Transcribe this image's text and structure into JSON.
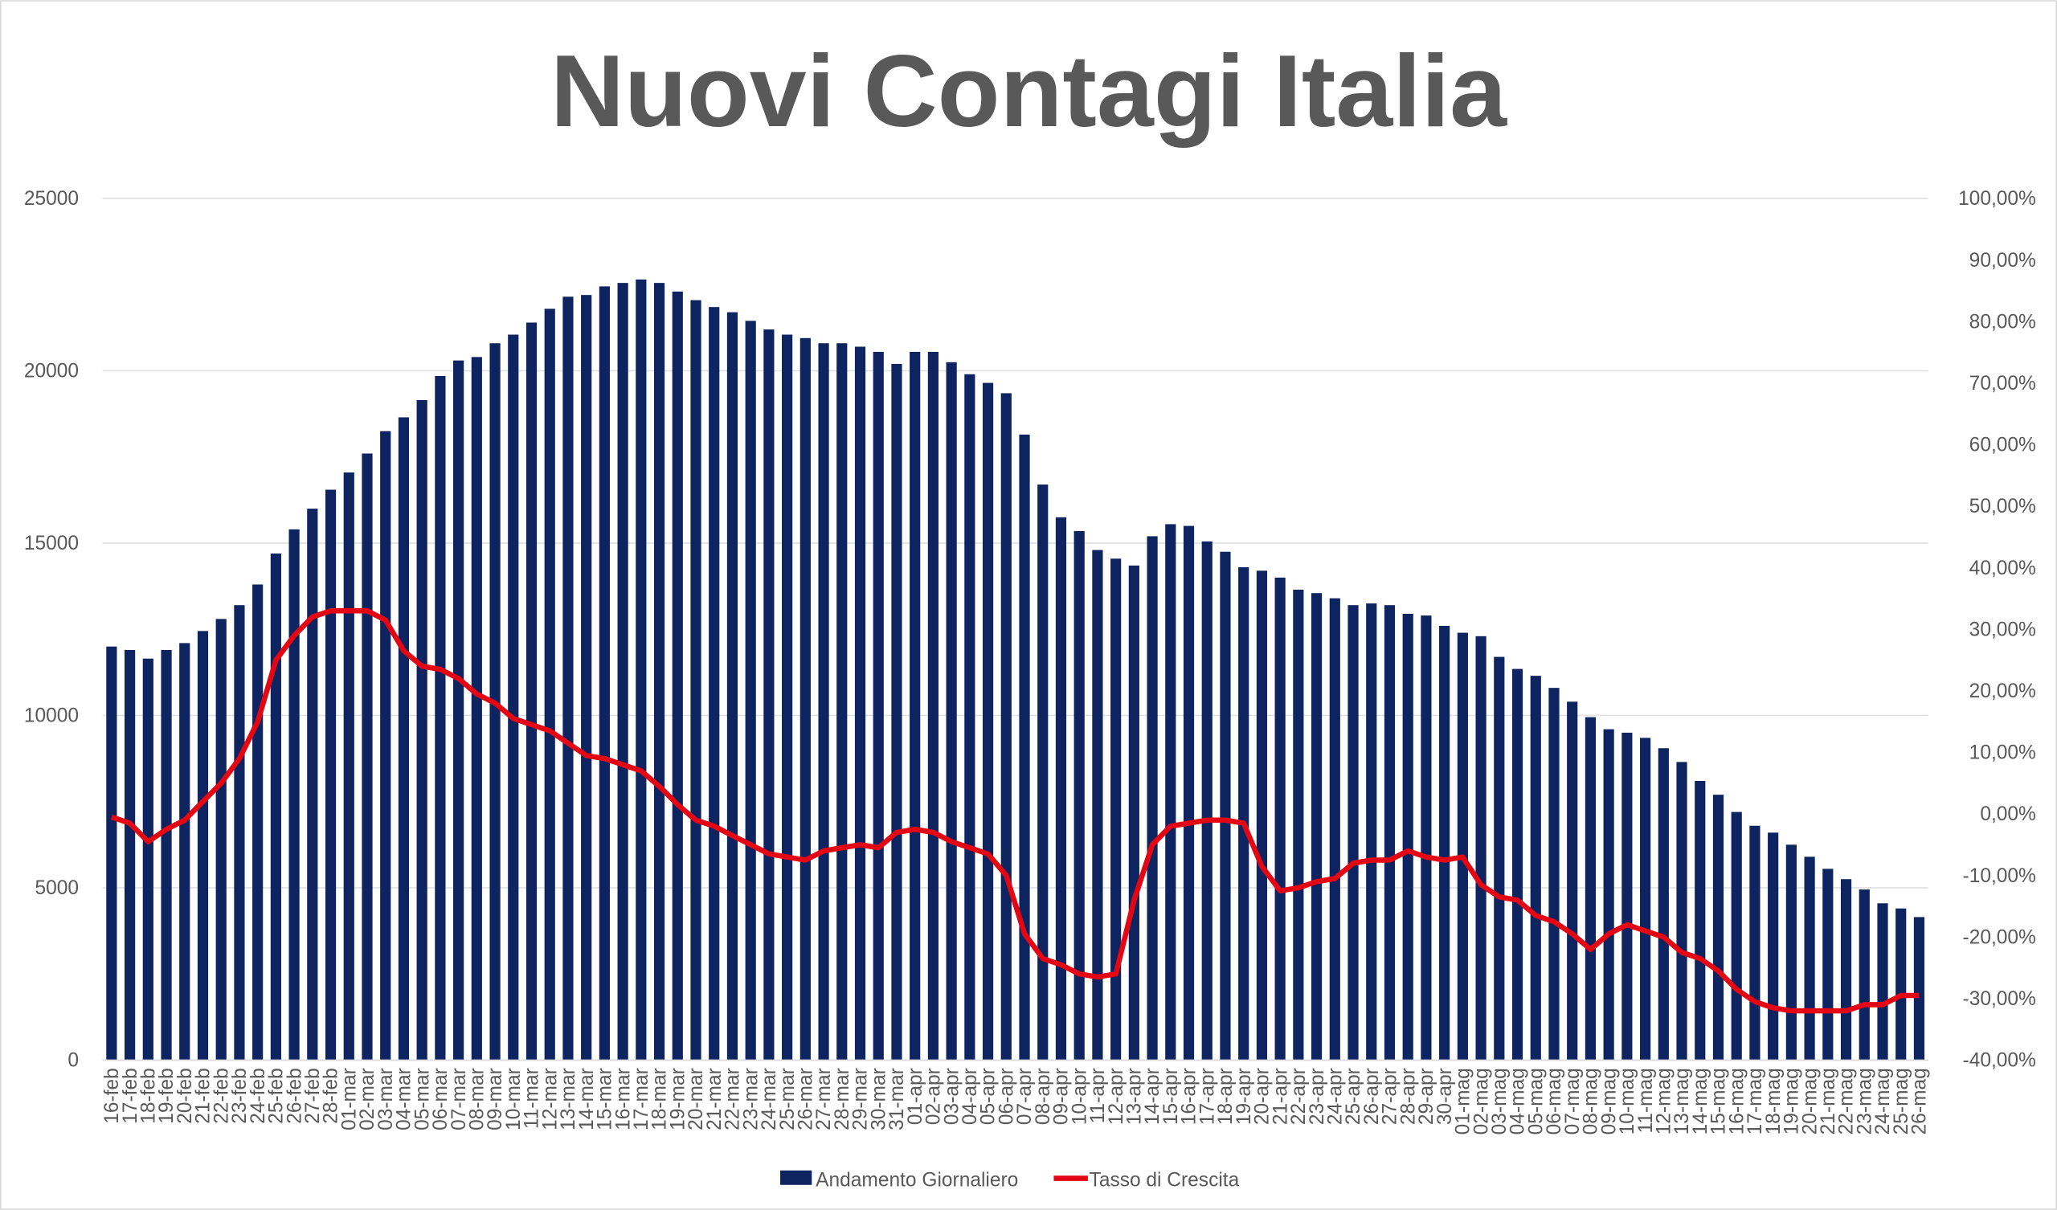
{
  "chart_data": {
    "type": "bar_line",
    "title": "Nuovi Contagi Italia",
    "categories": [
      "16-feb",
      "17-feb",
      "18-feb",
      "19-feb",
      "20-feb",
      "21-feb",
      "22-feb",
      "23-feb",
      "24-feb",
      "25-feb",
      "26-feb",
      "27-feb",
      "28-feb",
      "01-mar",
      "02-mar",
      "03-mar",
      "04-mar",
      "05-mar",
      "06-mar",
      "07-mar",
      "08-mar",
      "09-mar",
      "10-mar",
      "11-mar",
      "12-mar",
      "13-mar",
      "14-mar",
      "15-mar",
      "16-mar",
      "17-mar",
      "18-mar",
      "19-mar",
      "20-mar",
      "21-mar",
      "22-mar",
      "23-mar",
      "24-mar",
      "25-mar",
      "26-mar",
      "27-mar",
      "28-mar",
      "29-mar",
      "30-mar",
      "31-mar",
      "01-apr",
      "02-apr",
      "03-apr",
      "04-apr",
      "05-apr",
      "06-apr",
      "07-apr",
      "08-apr",
      "09-apr",
      "10-apr",
      "11-apr",
      "12-apr",
      "13-apr",
      "14-apr",
      "15-apr",
      "16-apr",
      "17-apr",
      "18-apr",
      "19-apr",
      "20-apr",
      "21-apr",
      "22-apr",
      "23-apr",
      "24-apr",
      "25-apr",
      "26-apr",
      "27-apr",
      "28-apr",
      "29-apr",
      "30-apr",
      "01-mag",
      "02-mag",
      "03-mag",
      "04-mag",
      "05-mag",
      "06-mag",
      "07-mag",
      "08-mag",
      "09-mag",
      "10-mag",
      "11-mag",
      "12-mag",
      "13-mag",
      "14-mag",
      "15-mag",
      "16-mag",
      "17-mag",
      "18-mag",
      "19-mag",
      "20-mag",
      "21-mag",
      "22-mag",
      "23-mag",
      "24-mag",
      "25-mag",
      "26-mag"
    ],
    "series": [
      {
        "name": "Andamento Giornaliero",
        "color": "#0d2461",
        "axis": "y",
        "values": [
          12000,
          11900,
          11650,
          11900,
          12100,
          12450,
          12800,
          13200,
          13800,
          14700,
          15400,
          16000,
          16550,
          17050,
          17600,
          18250,
          18650,
          19150,
          19850,
          20300,
          20400,
          20800,
          21050,
          21400,
          21800,
          22150,
          22200,
          22450,
          22550,
          22650,
          22550,
          22300,
          22050,
          21850,
          21700,
          21450,
          21200,
          21050,
          20950,
          20800,
          20800,
          20700,
          20550,
          20200,
          20550,
          20550,
          20250,
          19900,
          19650,
          19350,
          18150,
          16700,
          15750,
          15350,
          14800,
          14550,
          14350,
          15200,
          15550,
          15500,
          15050,
          14750,
          14300,
          14200,
          14000,
          13650,
          13550,
          13400,
          13200,
          13250,
          13200,
          12950,
          12900,
          12600,
          12400,
          12300,
          11700,
          11350,
          11150,
          10800,
          10400,
          9950,
          9600,
          9500,
          9350,
          9050,
          8650,
          8100,
          7700,
          7200,
          6800,
          6600,
          6250,
          5900,
          5550,
          5250,
          4950,
          4550,
          4400,
          4150
        ]
      },
      {
        "name": "Tasso di Crescita",
        "color": "#e30613",
        "axis": "y2",
        "values": [
          -0.5,
          -1.5,
          -4.5,
          -2.5,
          -1,
          2,
          5,
          9,
          15,
          25,
          29,
          32,
          33,
          33,
          33,
          31.5,
          26.5,
          24,
          23.5,
          22,
          19.5,
          18,
          15.5,
          14.5,
          13.5,
          11.5,
          9.5,
          9,
          8,
          7,
          4.5,
          1.5,
          -1,
          -2,
          -3.5,
          -5,
          -6.5,
          -7,
          -7.5,
          -6,
          -5.5,
          -5,
          -5.5,
          -3,
          -2.5,
          -3,
          -4.5,
          -5.5,
          -6.5,
          -10,
          -19.5,
          -23.5,
          -24.5,
          -26,
          -26.5,
          -26,
          -14,
          -5,
          -2,
          -1.5,
          -1,
          -1,
          -1.5,
          -8.5,
          -12.5,
          -12,
          -11,
          -10.5,
          -8,
          -7.5,
          -7.5,
          -6,
          -7,
          -7.5,
          -7,
          -11.5,
          -13.5,
          -14,
          -16.5,
          -17.5,
          -19.5,
          -22,
          -19.5,
          -18,
          -19,
          -20,
          -22.5,
          -23.5,
          -25.5,
          -28.5,
          -30.5,
          -31.5,
          -32,
          -32,
          -32,
          -32,
          -31,
          -31,
          -29.5,
          -29.5
        ]
      }
    ],
    "ylim": [
      0,
      25000
    ],
    "yticks": [
      0,
      5000,
      10000,
      15000,
      20000,
      25000
    ],
    "y2lim": [
      -40,
      100
    ],
    "y2ticks": [
      {
        "value": -40,
        "label": "-40,00%"
      },
      {
        "value": -30,
        "label": "-30,00%"
      },
      {
        "value": -20,
        "label": "-20,00%"
      },
      {
        "value": -10,
        "label": "-10,00%"
      },
      {
        "value": 0,
        "label": "0,00%"
      },
      {
        "value": 10,
        "label": "10,00%"
      },
      {
        "value": 20,
        "label": "20,00%"
      },
      {
        "value": 30,
        "label": "30,00%"
      },
      {
        "value": 40,
        "label": "40,00%"
      },
      {
        "value": 50,
        "label": "50,00%"
      },
      {
        "value": 60,
        "label": "60,00%"
      },
      {
        "value": 70,
        "label": "70,00%"
      },
      {
        "value": 80,
        "label": "80,00%"
      },
      {
        "value": 90,
        "label": "90,00%"
      },
      {
        "value": 100,
        "label": "100,00%"
      }
    ],
    "grid": true,
    "legend": "bottom"
  }
}
